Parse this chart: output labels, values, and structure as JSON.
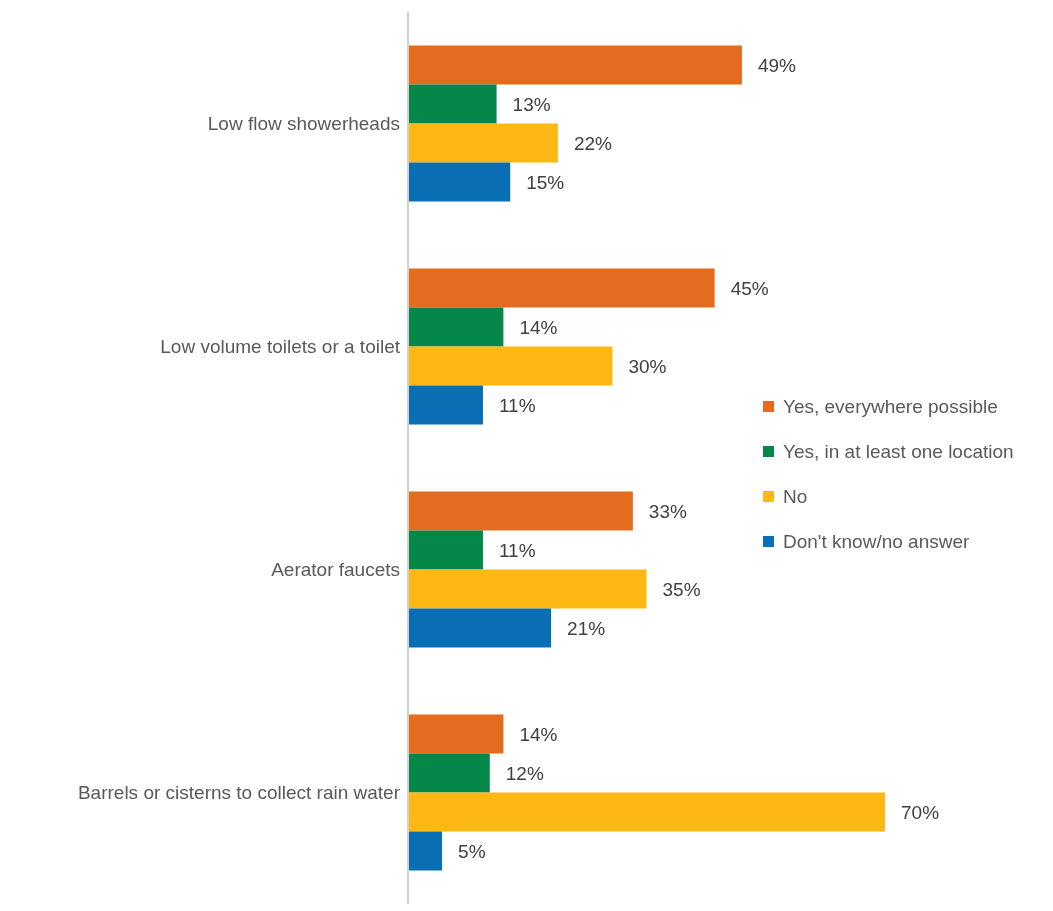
{
  "chart_data": {
    "type": "bar",
    "orientation": "horizontal",
    "categories": [
      "Low flow showerheads",
      "Low volume toilets or a toilet",
      "Aerator faucets",
      "Barrels or cisterns to collect rain water"
    ],
    "series": [
      {
        "name": "Yes, everywhere possible",
        "color": "#e46c1f",
        "values": [
          49,
          45,
          33,
          14
        ],
        "value_labels": [
          "49%",
          "45%",
          "33%",
          "14%"
        ]
      },
      {
        "name": "Yes, in at least one location",
        "color": "#05874a",
        "values": [
          13,
          14,
          11,
          12
        ],
        "value_labels": [
          "13%",
          "14%",
          "11%",
          "12%"
        ]
      },
      {
        "name": "No",
        "color": "#fdb813",
        "values": [
          22,
          30,
          35,
          70
        ],
        "value_labels": [
          "22%",
          "30%",
          "35%",
          "70%"
        ]
      },
      {
        "name": "Don't know/no answer",
        "color": "#0a6eb4",
        "values": [
          15,
          11,
          21,
          5
        ],
        "value_labels": [
          "15%",
          "11%",
          "21%",
          "5%"
        ]
      }
    ],
    "legend": "right",
    "tick_labels": "y"
  }
}
